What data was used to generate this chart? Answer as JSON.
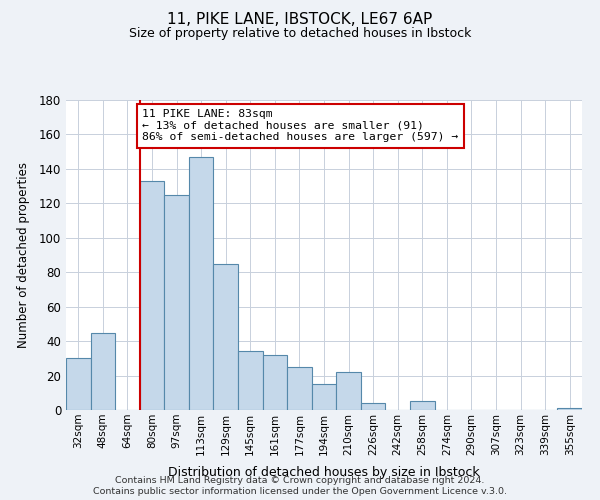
{
  "title_line1": "11, PIKE LANE, IBSTOCK, LE67 6AP",
  "title_line2": "Size of property relative to detached houses in Ibstock",
  "xlabel": "Distribution of detached houses by size in Ibstock",
  "ylabel": "Number of detached properties",
  "bin_labels": [
    "32sqm",
    "48sqm",
    "64sqm",
    "80sqm",
    "97sqm",
    "113sqm",
    "129sqm",
    "145sqm",
    "161sqm",
    "177sqm",
    "194sqm",
    "210sqm",
    "226sqm",
    "242sqm",
    "258sqm",
    "274sqm",
    "290sqm",
    "307sqm",
    "323sqm",
    "339sqm",
    "355sqm"
  ],
  "bar_values": [
    30,
    45,
    0,
    133,
    125,
    147,
    85,
    34,
    32,
    25,
    15,
    22,
    4,
    0,
    5,
    0,
    0,
    0,
    0,
    0,
    1
  ],
  "bar_color": "#c5d8ea",
  "bar_edge_color": "#5588aa",
  "vline_index": 3,
  "vline_color": "#cc0000",
  "annotation_line1": "11 PIKE LANE: 83sqm",
  "annotation_line2": "← 13% of detached houses are smaller (91)",
  "annotation_line3": "86% of semi-detached houses are larger (597) →",
  "annotation_box_color": "#ffffff",
  "annotation_border_color": "#cc0000",
  "ylim": [
    0,
    180
  ],
  "yticks": [
    0,
    20,
    40,
    60,
    80,
    100,
    120,
    140,
    160,
    180
  ],
  "footer_line1": "Contains HM Land Registry data © Crown copyright and database right 2024.",
  "footer_line2": "Contains public sector information licensed under the Open Government Licence v.3.0.",
  "background_color": "#eef2f7",
  "plot_background": "#ffffff",
  "grid_color": "#c8d0dc"
}
